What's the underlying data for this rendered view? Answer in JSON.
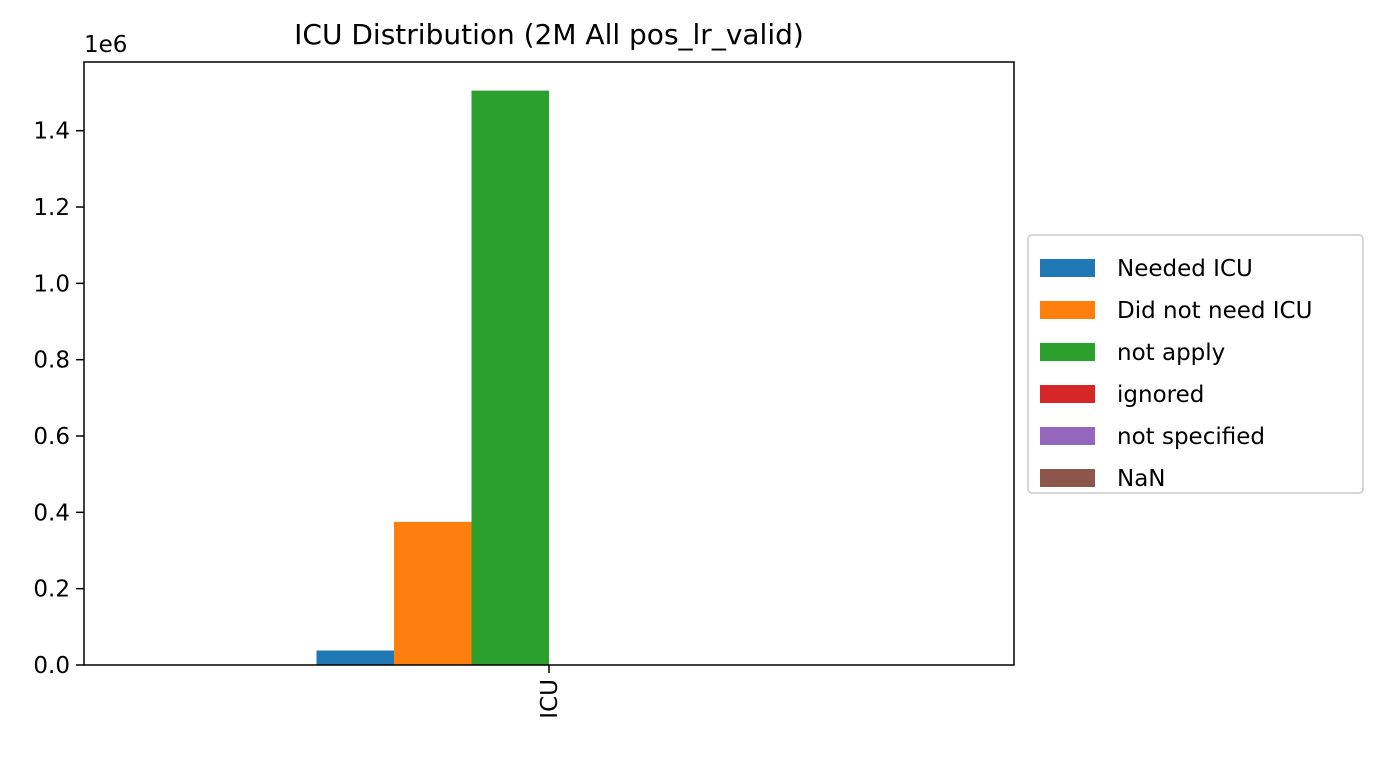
{
  "chart_data": {
    "type": "bar",
    "title": "ICU Distribution (2M All pos_lr_valid)",
    "xlabel": "",
    "ylabel": "",
    "categories": [
      "ICU"
    ],
    "y_scale_label": "1e6",
    "ylim": [
      0,
      1580000
    ],
    "y_ticks": [
      0,
      200000,
      400000,
      600000,
      800000,
      1000000,
      1200000,
      1400000
    ],
    "y_tick_labels": [
      "0.0",
      "0.2",
      "0.4",
      "0.6",
      "0.8",
      "1.0",
      "1.2",
      "1.4"
    ],
    "grid": false,
    "legend_position": "center-right, outside plot",
    "series": [
      {
        "name": "Needed ICU",
        "values": [
          38000
        ],
        "color": "#1f77b4"
      },
      {
        "name": "Did not need ICU",
        "values": [
          375000
        ],
        "color": "#ff7f0e"
      },
      {
        "name": "not apply",
        "values": [
          1505000
        ],
        "color": "#2ca02c"
      },
      {
        "name": "ignored",
        "values": [
          0
        ],
        "color": "#d62728"
      },
      {
        "name": "not specified",
        "values": [
          0
        ],
        "color": "#9467bd"
      },
      {
        "name": "NaN",
        "values": [
          0
        ],
        "color": "#8c564b"
      }
    ]
  }
}
